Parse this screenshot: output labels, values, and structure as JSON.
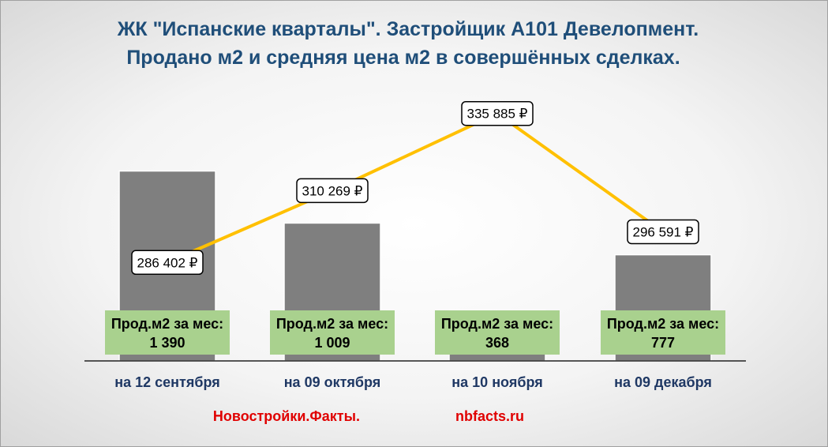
{
  "title_lines": [
    "ЖК \"Испанские кварталы\". Застройщик А101 Девелопмент.",
    "Продано м2 и средняя цена м2 в совершённых  сделках."
  ],
  "chart_data": {
    "type": "bar",
    "categories": [
      "на 12 сентября",
      "на 09 октября",
      "на 10 ноября",
      "на 09 декабря"
    ],
    "series": [
      {
        "type": "bar",
        "values": [
          1390,
          1009,
          368,
          777
        ],
        "label_prefix": "Прод.м2 за мес:",
        "value_labels": [
          "1 390",
          "1 009",
          "368",
          "777"
        ]
      },
      {
        "type": "line",
        "values": [
          286402,
          310269,
          335885,
          296591
        ],
        "value_labels": [
          "286 402 ₽",
          "310 269 ₽",
          "335 885 ₽",
          "296 591 ₽"
        ]
      }
    ],
    "bar_ylim": [
      0,
      2000
    ],
    "line_ylim": [
      250000,
      345000
    ],
    "legend": "none",
    "grid": false,
    "colors": {
      "bar": "#7f7f7f",
      "line": "#ffc000",
      "label_box": "#a9d18e",
      "title": "#1f4e79",
      "category": "#1f3864",
      "footer": "#e00000"
    }
  },
  "footer": {
    "left": "Новостройки.Факты.",
    "right": "nbfacts.ru"
  }
}
